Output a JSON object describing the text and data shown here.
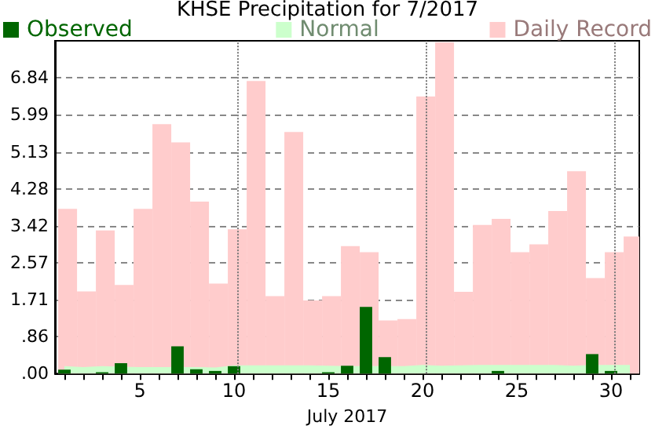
{
  "chart_data": {
    "type": "bar",
    "title": "KHSE Precipitation for 7/2017",
    "xlabel": "July 2017",
    "categories": [
      null,
      null,
      null,
      null,
      "5",
      null,
      null,
      null,
      null,
      "10",
      null,
      null,
      null,
      null,
      "15",
      null,
      null,
      null,
      null,
      "20",
      null,
      null,
      null,
      null,
      "25",
      null,
      null,
      null,
      null,
      "30",
      null
    ],
    "series": [
      {
        "name": "Daily Record",
        "color": "#ffcccc",
        "values": [
          3.81,
          1.9,
          3.31,
          2.05,
          3.81,
          5.77,
          5.35,
          3.98,
          2.08,
          3.34,
          6.77,
          1.79,
          5.59,
          1.69,
          1.79,
          2.95,
          2.81,
          1.23,
          1.26,
          6.41,
          7.67,
          1.89,
          3.44,
          3.58,
          2.81,
          2.99,
          3.76,
          4.68,
          2.21,
          2.81,
          3.17
        ]
      },
      {
        "name": "Normal",
        "type": "area",
        "color": "#ccffcc",
        "values": [
          0.17,
          0.15,
          0.17,
          0.16,
          0.15,
          0.15,
          null,
          0.15,
          0.14,
          0.19,
          0.19,
          0.19,
          0.19,
          0.19,
          0.18,
          0.17,
          null,
          0.17,
          0.17,
          0.2,
          0.18,
          0.19,
          0.2,
          0.2,
          0.2,
          0.2,
          0.2,
          0.18,
          0.2,
          0.2,
          0.2
        ]
      },
      {
        "name": "Observed",
        "color": "#006600",
        "values": [
          0.09,
          0,
          0.03,
          0.24,
          0,
          0,
          0.63,
          0.1,
          0.06,
          0.17,
          0,
          0,
          0,
          0,
          0.03,
          0.18,
          1.54,
          0.38,
          0,
          0,
          0,
          0,
          0,
          0.06,
          0,
          0,
          0,
          0,
          0.45,
          0.06,
          0
        ]
      }
    ],
    "ylim": [
      0,
      7.7
    ],
    "yticks": [
      {
        "value": 0,
        "label": ".00"
      },
      {
        "value": 0.855,
        "label": ".86"
      },
      {
        "value": 1.71,
        "label": "1.71"
      },
      {
        "value": 2.565,
        "label": "2.57"
      },
      {
        "value": 3.42,
        "label": "3.42"
      },
      {
        "value": 4.275,
        "label": "4.28"
      },
      {
        "value": 5.13,
        "label": "5.13"
      },
      {
        "value": 5.985,
        "label": "5.99"
      },
      {
        "value": 6.84,
        "label": "6.84"
      }
    ],
    "grid": "y",
    "legend": "top",
    "ref_lines": [
      {
        "axis": "x",
        "value": "10",
        "line_style": "dotted"
      },
      {
        "axis": "x",
        "value": "20",
        "line_style": "dotted"
      },
      {
        "axis": "x",
        "value": "30",
        "line_style": "dotted"
      }
    ]
  }
}
